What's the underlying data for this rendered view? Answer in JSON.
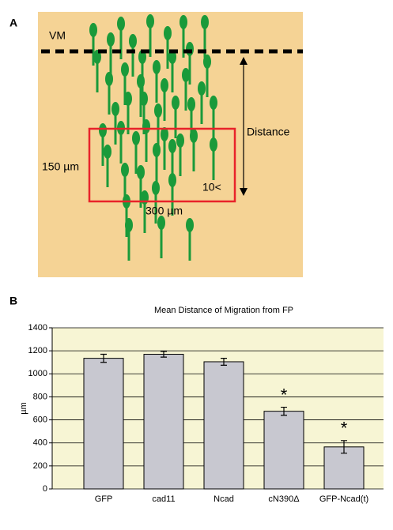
{
  "panel_a": {
    "label": "A",
    "vm": "VM",
    "distance": "Distance",
    "height": "150 µm",
    "width": "300 µm",
    "count": "10<"
  },
  "panel_b": {
    "label": "B"
  },
  "chart_data": {
    "type": "bar",
    "title": "Mean Distance of Migration from FP",
    "ylabel": "µm",
    "categories": [
      "GFP",
      "cad11",
      "Ncad",
      "cN390Δ",
      "GFP-Ncad(t)"
    ],
    "values": [
      1135,
      1170,
      1105,
      675,
      365
    ],
    "errors": [
      35,
      25,
      30,
      35,
      55
    ],
    "significance": [
      null,
      null,
      null,
      "*",
      "*"
    ],
    "color": "#c8c8d0",
    "ylim": [
      0,
      1400
    ],
    "yticks": [
      0,
      200,
      400,
      600,
      800,
      1000,
      1200,
      1400
    ],
    "grid": true
  }
}
